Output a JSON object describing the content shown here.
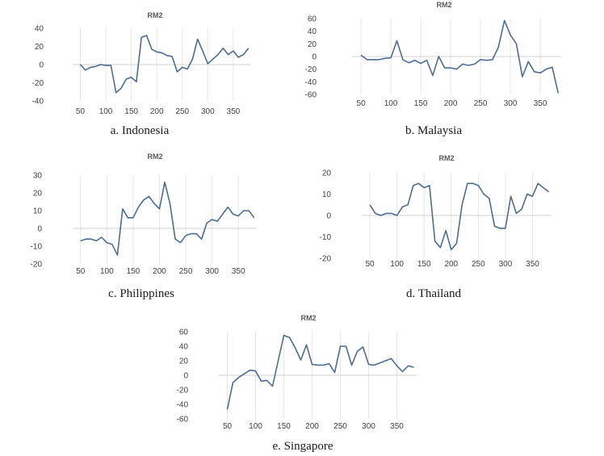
{
  "chart_data": [
    {
      "type": "line",
      "title": "RM2",
      "caption": "a. Indonesia",
      "xticks": [
        50,
        100,
        150,
        200,
        250,
        300,
        350
      ],
      "yticks": [
        40,
        20,
        0,
        -20,
        -40
      ],
      "xlim": [
        35,
        385
      ],
      "ylim": [
        -40,
        40
      ],
      "x": [
        50,
        60,
        70,
        80,
        90,
        100,
        110,
        120,
        130,
        140,
        150,
        160,
        170,
        180,
        190,
        200,
        210,
        220,
        230,
        240,
        250,
        260,
        270,
        280,
        290,
        300,
        310,
        320,
        330,
        340,
        350,
        360,
        370,
        380
      ],
      "series": [
        {
          "name": "RM2",
          "values": [
            0,
            -6,
            -3,
            -2,
            0,
            -1,
            -1,
            -31,
            -26,
            -16,
            -14,
            -19,
            30,
            32,
            17,
            14,
            13,
            10,
            9,
            -8,
            -3,
            -5,
            6,
            28,
            15,
            1,
            6,
            11,
            18,
            11,
            15,
            8,
            11,
            18
          ]
        }
      ]
    },
    {
      "type": "line",
      "title": "RM2",
      "caption": "b. Malaysia",
      "xticks": [
        50,
        100,
        150,
        200,
        250,
        300,
        350
      ],
      "yticks": [
        60,
        40,
        20,
        0,
        -20,
        -40,
        -60
      ],
      "xlim": [
        35,
        385
      ],
      "ylim": [
        -60,
        60
      ],
      "x": [
        50,
        60,
        70,
        80,
        90,
        100,
        110,
        120,
        130,
        140,
        150,
        160,
        170,
        180,
        190,
        200,
        210,
        220,
        230,
        240,
        250,
        260,
        270,
        280,
        290,
        300,
        310,
        320,
        330,
        340,
        350,
        360,
        370,
        380
      ],
      "series": [
        {
          "name": "RM2",
          "values": [
            2,
            -5,
            -5,
            -5,
            -3,
            -2,
            25,
            -5,
            -10,
            -6,
            -11,
            -6,
            -30,
            0,
            -18,
            -18,
            -20,
            -12,
            -14,
            -12,
            -5,
            -6,
            -5,
            15,
            57,
            34,
            20,
            -32,
            -8,
            -24,
            -26,
            -20,
            -17,
            -58
          ]
        }
      ]
    },
    {
      "type": "line",
      "title": "RM2",
      "caption": "c. Philippines",
      "xticks": [
        50,
        100,
        150,
        200,
        250,
        300,
        350
      ],
      "yticks": [
        30,
        20,
        10,
        0,
        -10,
        -20
      ],
      "xlim": [
        35,
        385
      ],
      "ylim": [
        -20,
        30
      ],
      "x": [
        50,
        60,
        70,
        80,
        90,
        100,
        110,
        120,
        130,
        140,
        150,
        160,
        170,
        180,
        190,
        200,
        210,
        220,
        230,
        240,
        250,
        260,
        270,
        280,
        290,
        300,
        310,
        320,
        330,
        340,
        350,
        360,
        370,
        380
      ],
      "series": [
        {
          "name": "RM2",
          "values": [
            -7,
            -6,
            -6,
            -7,
            -5,
            -8,
            -9,
            -15,
            11,
            6,
            6,
            12,
            16,
            18,
            14,
            11,
            26,
            14,
            -6,
            -8,
            -4,
            -3,
            -3,
            -6,
            3,
            5,
            4,
            8,
            12,
            8,
            7,
            10,
            10,
            6
          ]
        }
      ]
    },
    {
      "type": "line",
      "title": "RM2",
      "caption": "d. Thailand",
      "xticks": [
        50,
        100,
        150,
        200,
        250,
        300,
        350
      ],
      "yticks": [
        20,
        10,
        0,
        -10,
        -20
      ],
      "xlim": [
        35,
        385
      ],
      "ylim": [
        -20,
        20
      ],
      "x": [
        50,
        60,
        70,
        80,
        90,
        100,
        110,
        120,
        130,
        140,
        150,
        160,
        170,
        180,
        190,
        200,
        210,
        220,
        230,
        240,
        250,
        260,
        270,
        280,
        290,
        300,
        310,
        320,
        330,
        340,
        350,
        360,
        370,
        380
      ],
      "series": [
        {
          "name": "RM2",
          "values": [
            5,
            1,
            0,
            1,
            1,
            0,
            4,
            5,
            14,
            15,
            13,
            14,
            -12,
            -15,
            -7,
            -16,
            -13,
            5,
            15,
            15,
            14,
            10,
            8,
            -5,
            -6,
            -6,
            9,
            1,
            3,
            10,
            9,
            15,
            13,
            11
          ]
        }
      ]
    },
    {
      "type": "line",
      "title": "RM2",
      "caption": "e. Singapore",
      "xticks": [
        50,
        100,
        150,
        200,
        250,
        300,
        350
      ],
      "yticks": [
        60,
        40,
        20,
        0,
        -20,
        -40,
        -60
      ],
      "xlim": [
        35,
        385
      ],
      "ylim": [
        -60,
        60
      ],
      "x": [
        50,
        60,
        70,
        80,
        90,
        100,
        110,
        120,
        130,
        140,
        150,
        160,
        170,
        180,
        190,
        200,
        210,
        220,
        230,
        240,
        250,
        260,
        270,
        280,
        290,
        300,
        310,
        320,
        330,
        340,
        350,
        360,
        370,
        380
      ],
      "series": [
        {
          "name": "RM2",
          "values": [
            -47,
            -10,
            -3,
            2,
            7,
            6,
            -8,
            -7,
            -15,
            20,
            55,
            52,
            38,
            21,
            42,
            15,
            14,
            14,
            16,
            4,
            40,
            40,
            14,
            33,
            39,
            15,
            14,
            17,
            20,
            23,
            13,
            5,
            13,
            11
          ]
        }
      ]
    }
  ]
}
